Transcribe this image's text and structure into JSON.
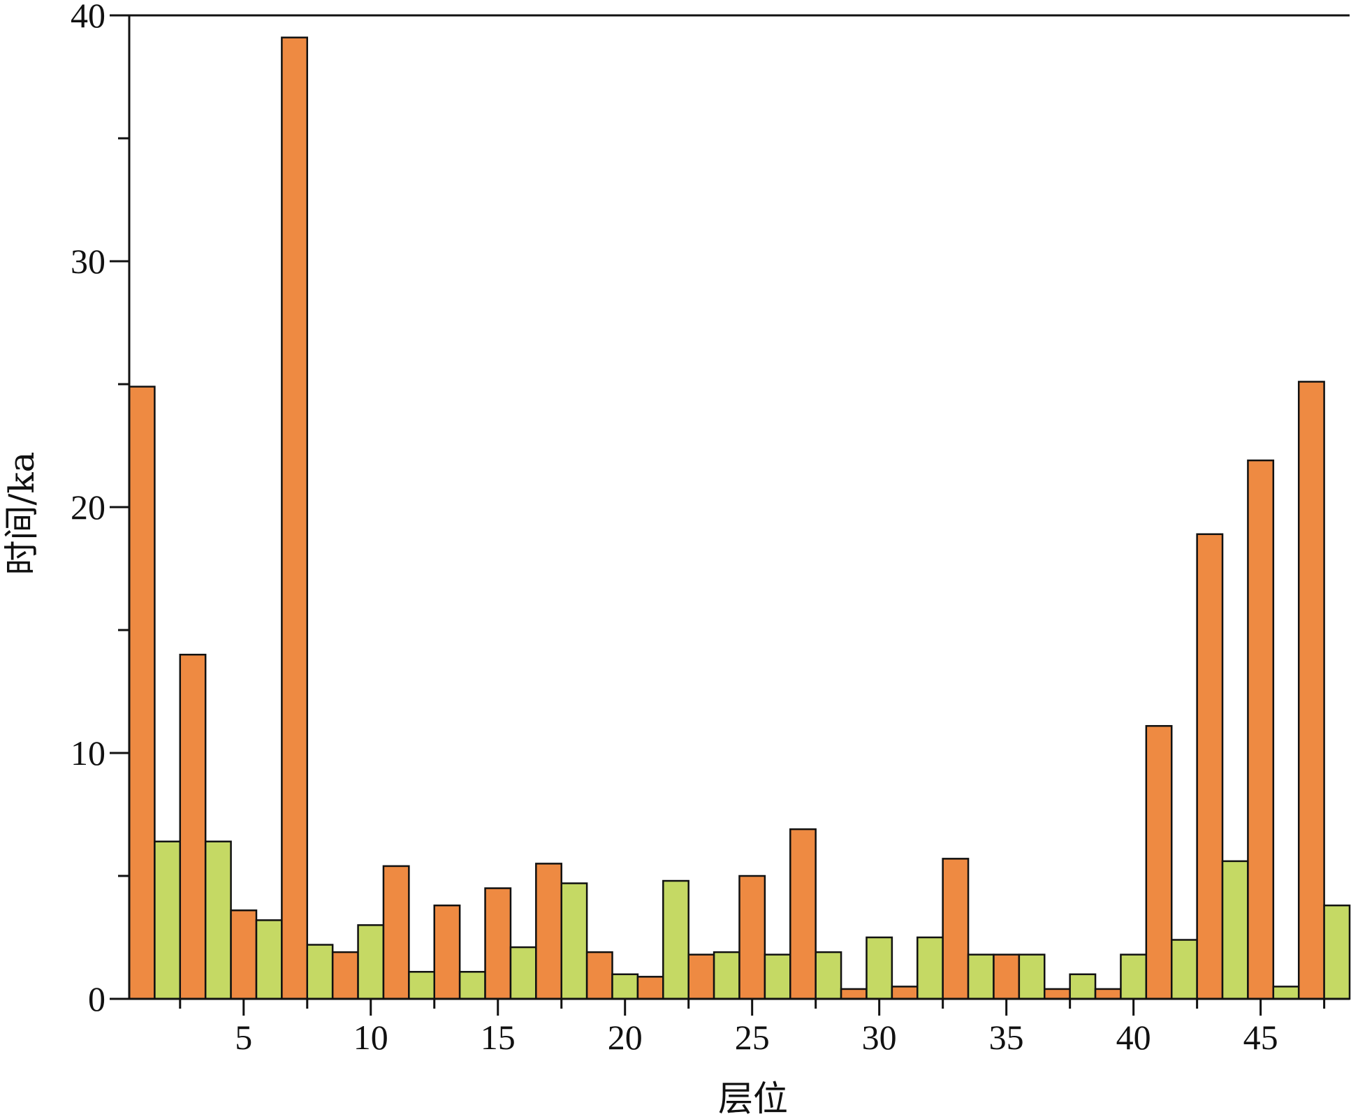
{
  "chart_data": {
    "type": "bar",
    "xlabel": "层位",
    "ylabel": "时间/ka",
    "ylim": [
      0,
      40
    ],
    "yticks": [
      0,
      10,
      20,
      30,
      40
    ],
    "y_minor_ticks": [
      5,
      15,
      25,
      35
    ],
    "xlim": [
      0.5,
      48.5
    ],
    "xticks": [
      5,
      10,
      15,
      20,
      25,
      30,
      35,
      40,
      45
    ],
    "grid": false,
    "legend": "none",
    "categories": [
      1,
      2,
      3,
      4,
      5,
      6,
      7,
      8,
      9,
      10,
      11,
      12,
      13,
      14,
      15,
      16,
      17,
      18,
      19,
      20,
      21,
      22,
      23,
      24,
      25,
      26,
      27,
      28,
      29,
      30,
      31,
      32,
      33,
      34,
      35,
      36,
      37,
      38,
      39,
      40,
      41,
      42,
      43,
      44,
      45,
      46,
      47,
      48
    ],
    "values": [
      24.9,
      6.4,
      14.0,
      6.4,
      3.6,
      3.2,
      39.1,
      2.2,
      1.9,
      3.0,
      5.4,
      1.1,
      3.8,
      1.1,
      4.5,
      2.1,
      5.5,
      4.7,
      1.9,
      1.0,
      0.9,
      4.8,
      1.8,
      1.9,
      5.0,
      1.8,
      6.9,
      1.9,
      0.4,
      2.5,
      0.5,
      2.5,
      5.7,
      1.8,
      1.8,
      1.8,
      0.4,
      1.0,
      0.4,
      1.8,
      11.1,
      2.4,
      18.9,
      5.6,
      21.9,
      0.5,
      25.1,
      3.8
    ],
    "bar_colors": [
      "#EE8A42",
      "#C5D964"
    ],
    "stroke_color": "#111111"
  }
}
